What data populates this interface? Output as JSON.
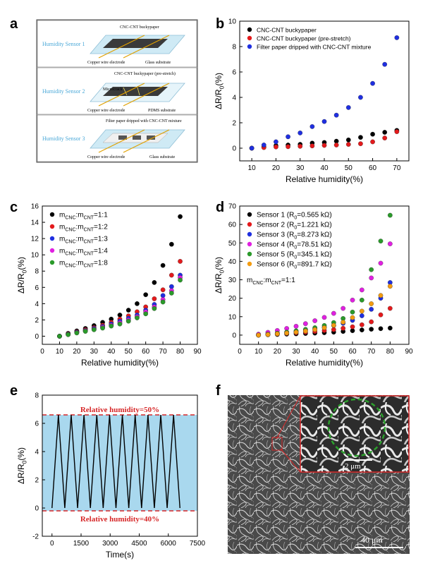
{
  "panels": {
    "a": {
      "letter": "a",
      "sensors": [
        {
          "title": "Humidity Sensor 1",
          "labels": [
            "CNC-CNT buckypaper",
            "Copper wire electrode",
            "Glass substrate"
          ]
        },
        {
          "title": "Humidity Sensor 2",
          "labels": [
            "CNC-CNT buckypaper (pre-stretch)",
            "Microcrack",
            "Copper wire electrode",
            "PDMS substrate"
          ]
        },
        {
          "title": "Humidity Sensor 3",
          "labels": [
            "Filter paper dripped with CNC-CNT mixture",
            "Copper wire electrode",
            "Glass substrate"
          ]
        }
      ]
    },
    "b": {
      "letter": "b"
    },
    "c": {
      "letter": "c"
    },
    "d": {
      "letter": "d"
    },
    "e": {
      "letter": "e"
    },
    "f": {
      "letter": "f",
      "inset_scale": "2 μm",
      "scale": "40 μm"
    }
  },
  "colors": {
    "black": "#000000",
    "red": "#e31a1c",
    "blue": "#1f2fe0",
    "magenta": "#e020e0",
    "green": "#2a9a2a",
    "orange": "#f39c12",
    "band": "#a9d8ee",
    "dash": "#d62728"
  },
  "chart_data": [
    {
      "panel": "b",
      "type": "scatter",
      "xlabel": "Relative humidity(%)",
      "ylabel": "ΔR/R0(%)",
      "xlim": [
        5,
        75
      ],
      "ylim": [
        -1,
        10
      ],
      "xticks": [
        10,
        20,
        30,
        40,
        50,
        60,
        70
      ],
      "yticks": [
        0,
        2,
        4,
        6,
        8,
        10
      ],
      "legend": "top-left",
      "x": [
        10,
        15,
        20,
        25,
        30,
        35,
        40,
        45,
        50,
        55,
        60,
        65,
        70
      ],
      "series": [
        {
          "name": "CNC-CNT buckypaper",
          "color": "#000000",
          "values": [
            0,
            0.1,
            0.2,
            0.25,
            0.3,
            0.4,
            0.45,
            0.55,
            0.65,
            0.85,
            1.1,
            1.25,
            1.4
          ]
        },
        {
          "name": "CNC-CNT buckypaper (pre-stretch)",
          "color": "#e31a1c",
          "values": [
            0,
            0.05,
            0.1,
            0.12,
            0.15,
            0.18,
            0.22,
            0.25,
            0.3,
            0.35,
            0.5,
            0.8,
            1.3
          ]
        },
        {
          "name": "Filter paper dripped with CNC-CNT mixture",
          "color": "#1f2fe0",
          "values": [
            0,
            0.25,
            0.5,
            0.9,
            1.2,
            1.7,
            2.1,
            2.6,
            3.2,
            4.0,
            5.1,
            6.6,
            8.7
          ]
        }
      ]
    },
    {
      "panel": "c",
      "type": "scatter",
      "xlabel": "Relative humidity(%)",
      "ylabel": "ΔR/R0(%)",
      "xlim": [
        0,
        90
      ],
      "ylim": [
        -1,
        16
      ],
      "xticks": [
        0,
        10,
        20,
        30,
        40,
        50,
        60,
        70,
        80,
        90
      ],
      "yticks": [
        0,
        2,
        4,
        6,
        8,
        10,
        12,
        14,
        16
      ],
      "legend": "top-left",
      "x": [
        10,
        15,
        20,
        25,
        30,
        35,
        40,
        45,
        50,
        55,
        60,
        65,
        70,
        75,
        80
      ],
      "series": [
        {
          "name": "mCNC:mCNT=1:1",
          "color": "#000000",
          "values": [
            0,
            0.35,
            0.65,
            0.95,
            1.3,
            1.7,
            2.1,
            2.6,
            3.2,
            4.0,
            5.1,
            6.6,
            8.7,
            11.3,
            14.7
          ]
        },
        {
          "name": "mCNC:mCNT=1:2",
          "color": "#e31a1c",
          "values": [
            0,
            0.3,
            0.55,
            0.8,
            1.05,
            1.35,
            1.7,
            2.1,
            2.5,
            3.0,
            3.6,
            4.6,
            5.7,
            7.5,
            9.2
          ]
        },
        {
          "name": "mCNC:mCNT=1:3",
          "color": "#1f2fe0",
          "values": [
            0,
            0.25,
            0.5,
            0.7,
            0.95,
            1.2,
            1.5,
            1.85,
            2.2,
            2.6,
            3.2,
            3.9,
            5.0,
            6.1,
            7.5
          ]
        },
        {
          "name": "mCNC:mCNT=1:4",
          "color": "#e020e0",
          "values": [
            0,
            0.2,
            0.45,
            0.65,
            0.85,
            1.1,
            1.35,
            1.65,
            2.0,
            2.4,
            3.0,
            3.6,
            4.5,
            5.6,
            7.2
          ]
        },
        {
          "name": "mCNC:mCNT=1:8",
          "color": "#2a9a2a",
          "values": [
            0,
            0.2,
            0.4,
            0.6,
            0.8,
            1.0,
            1.25,
            1.5,
            1.85,
            2.25,
            2.75,
            3.4,
            4.2,
            5.3,
            6.9
          ]
        }
      ]
    },
    {
      "panel": "d",
      "type": "scatter",
      "xlabel": "Relative humidity(%)",
      "ylabel": "ΔR/R0(%)",
      "xlim": [
        0,
        90
      ],
      "ylim": [
        -5,
        70
      ],
      "xticks": [
        0,
        10,
        20,
        30,
        40,
        50,
        60,
        70,
        80,
        90
      ],
      "yticks": [
        0,
        10,
        20,
        30,
        40,
        50,
        60,
        70
      ],
      "legend": "top-left",
      "annotation": "mCNC:mCNT=1:1",
      "x": [
        10,
        15,
        20,
        25,
        30,
        35,
        40,
        45,
        50,
        55,
        60,
        65,
        70,
        75,
        80
      ],
      "series": [
        {
          "name": "Sensor 1 (R0=0.565 kΩ)",
          "color": "#000000",
          "values": [
            0,
            0.2,
            0.35,
            0.55,
            0.7,
            0.9,
            1.1,
            1.3,
            1.6,
            2.0,
            2.4,
            2.8,
            3.2,
            3.5,
            3.8
          ]
        },
        {
          "name": "Sensor 2 (R0=1.221 kΩ)",
          "color": "#e31a1c",
          "values": [
            0,
            0.3,
            0.6,
            0.9,
            1.2,
            1.6,
            2.0,
            2.5,
            3.0,
            3.7,
            4.5,
            5.6,
            7.2,
            11.0,
            14.5
          ]
        },
        {
          "name": "Sensor 3 (R0=8.273 kΩ)",
          "color": "#1f2fe0",
          "values": [
            0,
            0.5,
            1.0,
            1.5,
            2.0,
            2.7,
            3.4,
            4.2,
            5.2,
            6.4,
            8.0,
            10.5,
            14.0,
            20.0,
            28.5
          ]
        },
        {
          "name": "Sensor 4 (R0=78.51 kΩ)",
          "color": "#e020e0",
          "values": [
            0.5,
            1.5,
            2.5,
            3.6,
            4.8,
            6.2,
            7.8,
            9.6,
            11.8,
            14.5,
            19.0,
            24.5,
            31.0,
            39.0,
            49.5
          ]
        },
        {
          "name": "Sensor 5 (R0=345.1 kΩ)",
          "color": "#2a9a2a",
          "values": [
            0,
            0.5,
            1.0,
            1.6,
            2.3,
            3.1,
            4.0,
            5.2,
            6.8,
            9.0,
            12.5,
            19.0,
            35.5,
            51.0,
            65.0
          ]
        },
        {
          "name": "Sensor 6 (R0=891.7 kΩ)",
          "color": "#f39c12",
          "values": [
            0,
            0.3,
            0.7,
            1.1,
            1.6,
            2.2,
            3.0,
            4.0,
            5.3,
            7.0,
            9.5,
            13.0,
            17.0,
            21.5,
            26.5
          ]
        }
      ]
    },
    {
      "panel": "e",
      "type": "line",
      "xlabel": "Time(s)",
      "ylabel": "ΔR/R0(%)",
      "xlim": [
        -500,
        7500
      ],
      "ylim": [
        -2,
        8
      ],
      "xticks": [
        0,
        1500,
        3000,
        4500,
        6000,
        7500
      ],
      "yticks": [
        -2,
        0,
        2,
        4,
        6,
        8
      ],
      "band": [
        -0.2,
        6.6
      ],
      "annotations": [
        "Relative humidity=50%",
        "Relative humidity=40%"
      ],
      "cycles": 10,
      "period": 660,
      "start": 0,
      "min": 0,
      "max": 6.6
    }
  ]
}
